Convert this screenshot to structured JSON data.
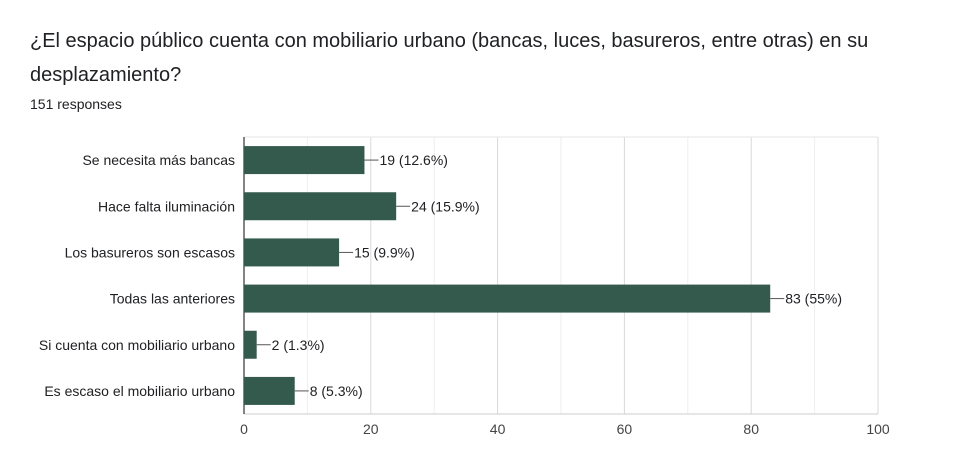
{
  "header": {
    "title": "¿El espacio público cuenta con mobiliario urbano (bancas, luces, basureros, entre otras) en su desplazamiento?",
    "responses": "151 responses"
  },
  "chart_data": {
    "type": "bar",
    "orientation": "horizontal",
    "categories": [
      "Se necesita más bancas",
      "Hace falta iluminación",
      "Los basureros son escasos",
      "Todas las anteriores",
      "Si cuenta con mobiliario urbano",
      "Es escaso el mobiliario urbano"
    ],
    "values": [
      19,
      24,
      15,
      83,
      2,
      8
    ],
    "data_labels": [
      "19 (12.6%)",
      "24 (15.9%)",
      "15 (9.9%)",
      "83 (55%)",
      "2 (1.3%)",
      "8 (5.3%)"
    ],
    "xlim": [
      0,
      100
    ],
    "xticks": [
      0,
      20,
      40,
      60,
      80,
      100
    ],
    "grid": true,
    "bar_color": "#345a4e"
  }
}
